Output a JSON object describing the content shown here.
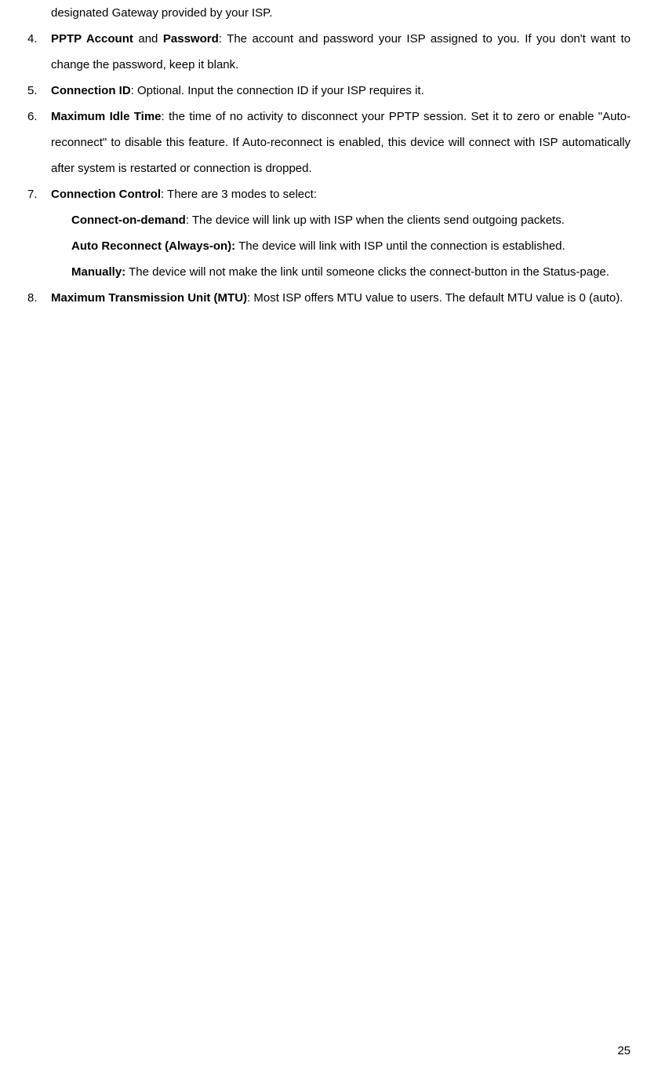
{
  "content": {
    "line0": "designated Gateway provided by your ISP.",
    "item4": {
      "number": "4.",
      "bold1": "PPTP Account",
      "text1": " and ",
      "bold2": "Password",
      "text2": ": The account and password your ISP assigned to you. If you don't want to change the password, keep it blank."
    },
    "item5": {
      "number": "5.",
      "bold1": "Connection ID",
      "text1": ": Optional. Input the connection ID if your ISP requires it."
    },
    "item6": {
      "number": "6.",
      "bold1": "Maximum Idle Time",
      "text1": ": the time of no activity to disconnect your PPTP session. Set it to zero or enable \"Auto-reconnect\" to disable this feature. If Auto-reconnect is enabled, this device will connect with ISP automatically after system is restarted or connection is dropped."
    },
    "item7": {
      "number": "7.",
      "bold1": "Connection Control",
      "text1": ": There are 3 modes to select:",
      "sub1": {
        "bold": "Connect-on-demand",
        "text": ": The device will link up with ISP when the clients send outgoing packets."
      },
      "sub2": {
        "bold": "Auto Reconnect (Always-on):",
        "text": " The device will link with ISP until the connection is established."
      },
      "sub3": {
        "bold": "Manually:",
        "text": " The device will not make the link until someone clicks the connect-button in the Status-page."
      }
    },
    "item8": {
      "number": "8.",
      "bold1": "Maximum Transmission Unit (MTU)",
      "text1": ": Most ISP offers MTU value to users. The default MTU value is 0 (auto)."
    }
  },
  "pageNumber": "25"
}
